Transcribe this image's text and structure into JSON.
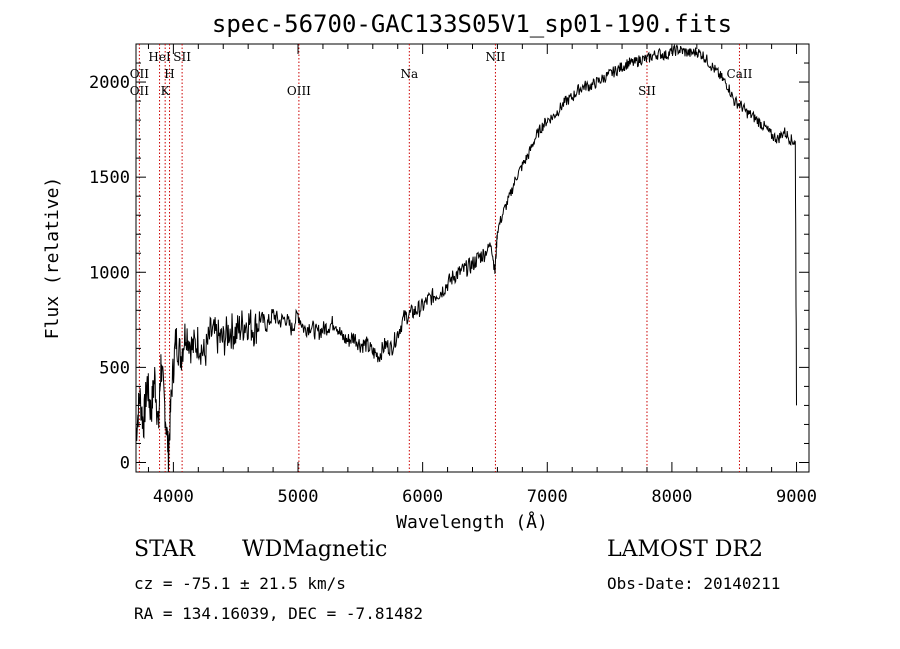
{
  "chart_data": {
    "type": "line",
    "title": "spec-56700-GAC133S05V1_sp01-190.fits",
    "xlabel": "Wavelength (Å)",
    "ylabel": "Flux (relative)",
    "xlim": [
      3700,
      9100
    ],
    "ylim": [
      -50,
      2200
    ],
    "x_ticks": [
      4000,
      5000,
      6000,
      7000,
      8000,
      9000
    ],
    "y_ticks": [
      0,
      500,
      1000,
      1500,
      2000
    ],
    "grid": false,
    "series": [
      {
        "x": [
          3700,
          3730,
          3760,
          3790,
          3820,
          3850,
          3880,
          3900,
          3930,
          3960,
          3990,
          4020,
          4060,
          4100,
          4150,
          4200,
          4250,
          4300,
          4350,
          4400,
          4450,
          4500,
          4550,
          4600,
          4650,
          4700,
          4750,
          4800,
          4850,
          4900,
          4950,
          5000,
          5050,
          5100,
          5150,
          5200,
          5250,
          5300,
          5350,
          5400,
          5450,
          5500,
          5550,
          5600,
          5650,
          5700,
          5750,
          5800,
          5850,
          5900,
          5950,
          6000,
          6050,
          6100,
          6150,
          6200,
          6250,
          6300,
          6350,
          6400,
          6450,
          6500,
          6550,
          6580,
          6600,
          6650,
          6700,
          6750,
          6800,
          6850,
          6900,
          6950,
          7000,
          7050,
          7100,
          7150,
          7200,
          7250,
          7300,
          7350,
          7400,
          7450,
          7500,
          7550,
          7600,
          7650,
          7700,
          7750,
          7800,
          7850,
          7900,
          7950,
          8000,
          8050,
          8100,
          8150,
          8200,
          8250,
          8300,
          8350,
          8400,
          8450,
          8500,
          8550,
          8600,
          8650,
          8700,
          8750,
          8800,
          8850,
          8900,
          8950,
          8990,
          9000
        ],
        "y": [
          150,
          350,
          200,
          420,
          260,
          450,
          180,
          520,
          300,
          50,
          420,
          650,
          560,
          700,
          600,
          640,
          560,
          680,
          660,
          640,
          700,
          680,
          720,
          740,
          700,
          760,
          720,
          780,
          740,
          760,
          700,
          780,
          700,
          720,
          680,
          700,
          720,
          740,
          660,
          640,
          660,
          620,
          620,
          580,
          560,
          620,
          600,
          680,
          760,
          780,
          800,
          820,
          860,
          880,
          900,
          940,
          980,
          1000,
          1020,
          1040,
          1080,
          1100,
          1150,
          1000,
          1220,
          1320,
          1400,
          1500,
          1560,
          1620,
          1700,
          1760,
          1800,
          1820,
          1860,
          1900,
          1920,
          1960,
          1980,
          1980,
          2000,
          2020,
          2040,
          2060,
          2080,
          2100,
          2100,
          2120,
          2120,
          2140,
          2150,
          2140,
          2160,
          2170,
          2160,
          2150,
          2160,
          2140,
          2100,
          2060,
          2020,
          1980,
          1900,
          1880,
          1840,
          1820,
          1790,
          1760,
          1720,
          1700,
          1740,
          1700,
          1680,
          300
        ]
      }
    ],
    "lines_top": [
      {
        "label": "OII",
        "x": 3727,
        "row": 2
      },
      {
        "label": "HeI",
        "x": 3889,
        "row": 1
      },
      {
        "label": "H",
        "x": 3969,
        "row": 2
      },
      {
        "label": "SII",
        "x": 4070,
        "row": 1
      },
      {
        "label": "Na",
        "x": 5893,
        "row": 2
      },
      {
        "label": "NII",
        "x": 6584,
        "row": 1
      },
      {
        "label": "CaII",
        "x": 8542,
        "row": 2
      }
    ],
    "lines_bottom": [
      {
        "label": "OII",
        "x": 3727
      },
      {
        "label": "K",
        "x": 3934
      },
      {
        "label": "OIII",
        "x": 5007
      },
      {
        "label": "SII",
        "x": 7800
      }
    ],
    "colors": {
      "spectrum": "#000000",
      "line_marker": "#cc0000"
    }
  },
  "info": {
    "class_label": "STAR",
    "subclass_label": "WDMagnetic",
    "survey_label": "LAMOST DR2",
    "cz_text": "cz = -75.1 ± 21.5 km/s",
    "obs_date_text": "Obs-Date: 20140211",
    "radec_text": "RA = 134.16039, DEC =  -7.81482"
  }
}
